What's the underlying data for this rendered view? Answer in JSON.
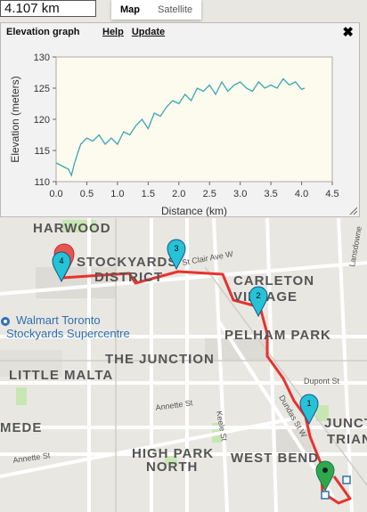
{
  "distance": {
    "value": "4.107 km"
  },
  "map_type": {
    "map": "Map",
    "satellite": "Satellite"
  },
  "panel": {
    "title": "Elevation graph",
    "help": "Help",
    "update": "Update"
  },
  "map_labels": {
    "harwood": "HARWOOD",
    "stockyards_1": "STOCKYARDS",
    "stockyards_2": "DISTRICT",
    "st_clair": "St Clair Ave W",
    "carleton_1": "CARLETON",
    "carleton_2": "VILLAGE",
    "lansdowne": "Lansdowne",
    "walmart_1": "Walmart Toronto",
    "walmart_2": "Stockyards Supercentre",
    "pelham": "PELHAM PARK",
    "junction": "THE JUNCTION",
    "little_malta": "LITTLE MALTA",
    "dupont": "Dupont St",
    "dundas": "Dundas St W",
    "annette_1": "Annette St",
    "annette_2": "Annette St",
    "keele": "Keele St",
    "mede": "MEDE",
    "high_park_1": "HIGH PARK",
    "high_park_2": "NORTH",
    "west_bend": "WEST BEND",
    "junct_1": "JUNCT",
    "junct_2": "TRIAN"
  },
  "markers": {
    "m1": "1",
    "m2": "2",
    "m3": "3",
    "m4": "4"
  },
  "colors": {
    "route": "#e8322d",
    "marker_blue": "#26c2d6",
    "marker_green": "#2fa84a",
    "marker_red": "#e8554e",
    "plot_bg": "#fdfaee",
    "line": "#3aa7b5"
  },
  "chart_data": {
    "type": "line",
    "xlabel": "Distance (km)",
    "ylabel": "Elevation (meters)",
    "xlim": [
      0,
      4.5
    ],
    "ylim": [
      110,
      130
    ],
    "xticks": [
      "0.0",
      "0.5",
      "1.0",
      "1.5",
      "2.0",
      "2.5",
      "3.0",
      "3.5",
      "4.0",
      "4.5"
    ],
    "yticks": [
      "110",
      "115",
      "120",
      "125",
      "130"
    ],
    "x": [
      0.0,
      0.1,
      0.2,
      0.25,
      0.3,
      0.35,
      0.4,
      0.5,
      0.6,
      0.7,
      0.8,
      0.9,
      1.0,
      1.1,
      1.2,
      1.3,
      1.4,
      1.5,
      1.6,
      1.7,
      1.8,
      1.9,
      2.0,
      2.1,
      2.2,
      2.3,
      2.4,
      2.5,
      2.6,
      2.7,
      2.8,
      2.9,
      3.0,
      3.1,
      3.2,
      3.3,
      3.4,
      3.5,
      3.6,
      3.7,
      3.8,
      3.9,
      4.0,
      4.05
    ],
    "y": [
      113,
      112.5,
      112,
      111,
      113,
      114.5,
      116,
      117,
      116.5,
      117.5,
      116,
      117,
      116,
      118,
      117.5,
      119,
      120,
      118.5,
      121,
      120.5,
      122,
      123,
      122.5,
      124,
      123,
      125,
      124.5,
      125.5,
      124,
      126,
      124.5,
      125.5,
      126,
      125,
      124.5,
      126,
      125,
      125.5,
      125,
      126.5,
      125.5,
      126,
      124.8,
      125
    ]
  }
}
